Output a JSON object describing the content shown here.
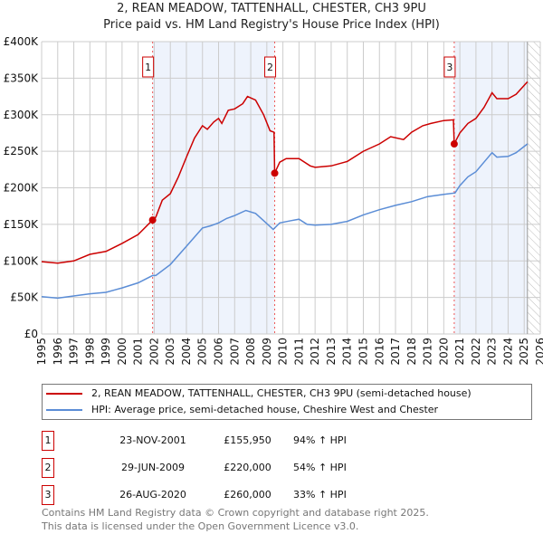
{
  "chart_data": {
    "type": "line",
    "title": "2, REAN MEADOW, TATTENHALL, CHESTER, CH3 9PU",
    "subtitle": "Price paid vs. HM Land Registry's House Price Index (HPI)",
    "xlim": [
      1995,
      2026
    ],
    "ylim": [
      0,
      400000
    ],
    "yticks": [
      0,
      50000,
      100000,
      150000,
      200000,
      250000,
      300000,
      350000,
      400000
    ],
    "ytick_labels": [
      "£0",
      "£50K",
      "£100K",
      "£150K",
      "£200K",
      "£250K",
      "£300K",
      "£350K",
      "£400K"
    ],
    "xticks": [
      "1995",
      "1996",
      "1997",
      "1998",
      "1999",
      "2000",
      "2001",
      "2002",
      "2003",
      "2004",
      "2005",
      "2006",
      "2007",
      "2008",
      "2009",
      "2010",
      "2011",
      "2012",
      "2013",
      "2014",
      "2015",
      "2016",
      "2017",
      "2018",
      "2019",
      "2020",
      "2021",
      "2022",
      "2023",
      "2024",
      "2025",
      "2026"
    ],
    "grid": true,
    "shaded_periods": [
      [
        2001.9,
        2009.49
      ],
      [
        2020.65,
        2025.2
      ]
    ],
    "forecast_hatch_from": 2025.2,
    "series": [
      {
        "name": "2, REAN MEADOW, TATTENHALL, CHESTER, CH3 9PU (semi-detached house)",
        "color": "#cc0000",
        "x": [
          1995,
          1996,
          1997,
          1998,
          1999,
          2000,
          2001,
          2001.9,
          2002.1,
          2002.5,
          2003,
          2003.5,
          2004,
          2004.5,
          2005,
          2005.3,
          2005.7,
          2006,
          2006.2,
          2006.6,
          2007,
          2007.5,
          2007.8,
          2008.3,
          2008.8,
          2009.2,
          2009.45,
          2009.49,
          2009.8,
          2010.2,
          2011,
          2011.7,
          2012,
          2013,
          2014,
          2015,
          2016,
          2016.7,
          2017.5,
          2018,
          2018.7,
          2019.2,
          2020,
          2020.6,
          2020.65,
          2021,
          2021.5,
          2022,
          2022.5,
          2023,
          2023.3,
          2024,
          2024.5,
          2025.2
        ],
        "y": [
          99000,
          97000,
          100000,
          109000,
          113000,
          124000,
          136000,
          155950,
          160000,
          183000,
          192000,
          215000,
          242000,
          268000,
          285000,
          280000,
          290000,
          295000,
          288000,
          306000,
          308000,
          315000,
          325000,
          320000,
          300000,
          278000,
          276000,
          220000,
          235000,
          240000,
          240000,
          230000,
          228000,
          230000,
          236000,
          250000,
          260000,
          270000,
          266000,
          276000,
          285000,
          288000,
          292000,
          293000,
          260000,
          275000,
          288000,
          295000,
          310000,
          330000,
          322000,
          322000,
          328000,
          345000
        ]
      },
      {
        "name": "HPI: Average price, semi-detached house, Cheshire West and Chester",
        "color": "#5b8dd6",
        "x": [
          1995,
          1996,
          1997,
          1998,
          1999,
          2000,
          2001,
          2001.9,
          2002.1,
          2003,
          2004,
          2005,
          2005.5,
          2006,
          2006.5,
          2007,
          2007.7,
          2008.3,
          2008.8,
          2009.4,
          2009.8,
          2010.5,
          2011,
          2011.5,
          2012,
          2013,
          2014,
          2015,
          2016,
          2017,
          2018,
          2019,
          2020,
          2020.7,
          2021,
          2021.5,
          2022,
          2022.5,
          2023,
          2023.3,
          2024,
          2024.5,
          2025.2
        ],
        "y": [
          51000,
          49000,
          52000,
          55000,
          57000,
          63000,
          70000,
          80000,
          80000,
          95000,
          120000,
          145000,
          148000,
          152000,
          158000,
          162000,
          169000,
          165000,
          155000,
          143000,
          152000,
          155000,
          157000,
          150000,
          149000,
          150000,
          154000,
          163000,
          170000,
          176000,
          181000,
          188000,
          191000,
          193000,
          203000,
          215000,
          222000,
          235000,
          248000,
          242000,
          243000,
          248000,
          260000
        ]
      }
    ],
    "sales": [
      {
        "label": "1",
        "x": 2001.9,
        "y": 155950
      },
      {
        "label": "2",
        "x": 2009.49,
        "y": 220000
      },
      {
        "label": "3",
        "x": 2020.65,
        "y": 260000
      }
    ]
  },
  "legend": {
    "property": "2, REAN MEADOW, TATTENHALL, CHESTER, CH3 9PU (semi-detached house)",
    "hpi": "HPI: Average price, semi-detached house, Cheshire West and Chester"
  },
  "transactions": [
    {
      "num": "1",
      "date": "23-NOV-2001",
      "price": "£155,950",
      "hpi": "94% ↑ HPI"
    },
    {
      "num": "2",
      "date": "29-JUN-2009",
      "price": "£220,000",
      "hpi": "54% ↑ HPI"
    },
    {
      "num": "3",
      "date": "26-AUG-2020",
      "price": "£260,000",
      "hpi": "33% ↑ HPI"
    }
  ],
  "footer": {
    "line1": "Contains HM Land Registry data © Crown copyright and database right 2025.",
    "line2": "This data is licensed under the Open Government Licence v3.0."
  }
}
